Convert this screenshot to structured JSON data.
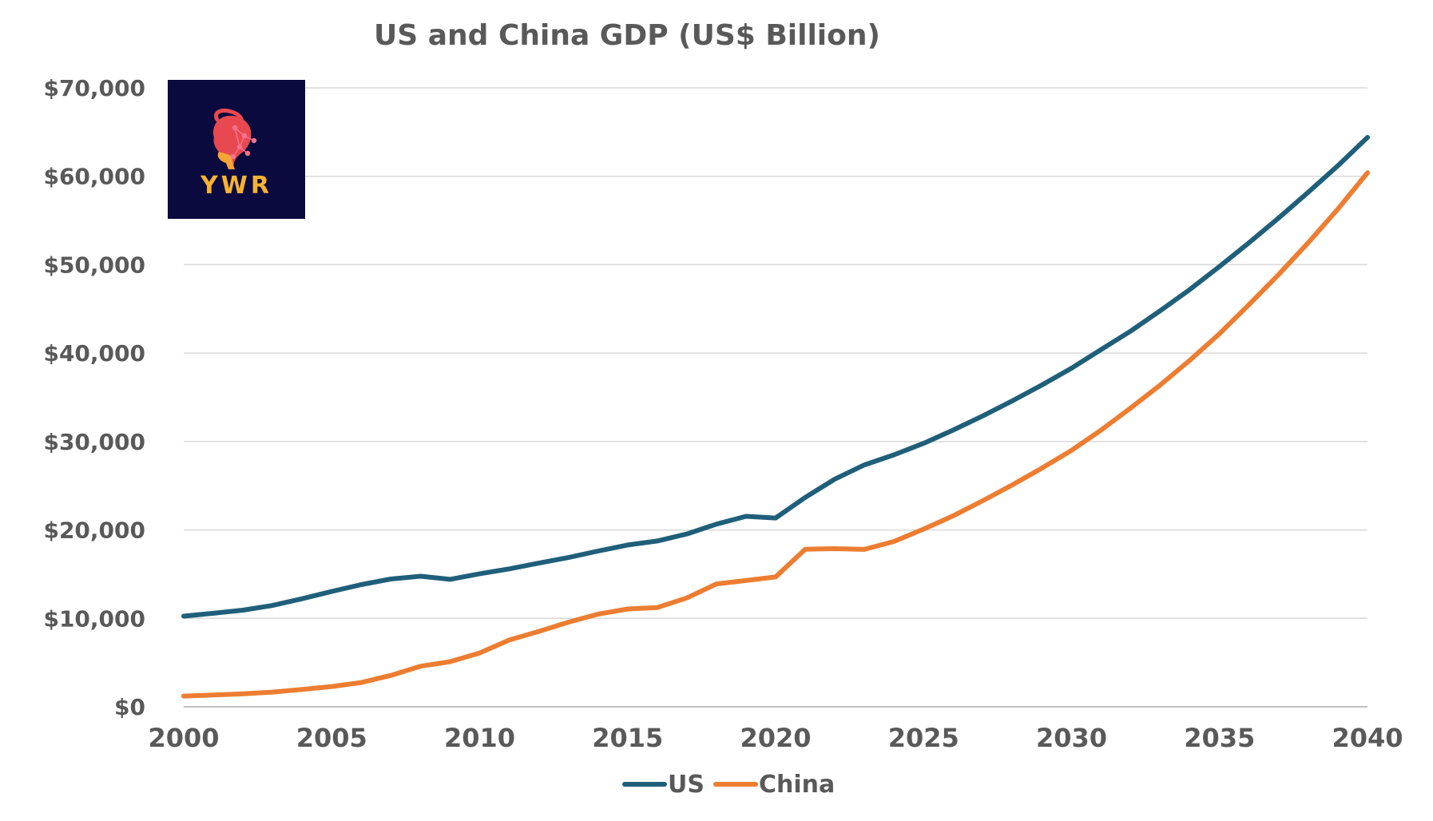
{
  "chart_data": {
    "type": "line",
    "title": "US and China GDP (US$ Billion)",
    "xlabel": "",
    "ylabel": "",
    "x": [
      2000,
      2001,
      2002,
      2003,
      2004,
      2005,
      2006,
      2007,
      2008,
      2009,
      2010,
      2011,
      2012,
      2013,
      2014,
      2015,
      2016,
      2017,
      2018,
      2019,
      2020,
      2021,
      2022,
      2023,
      2024,
      2025,
      2026,
      2027,
      2028,
      2029,
      2030,
      2031,
      2032,
      2033,
      2034,
      2035,
      2036,
      2037,
      2038,
      2039,
      2040
    ],
    "xlim": [
      2000,
      2040
    ],
    "ylim": [
      0,
      70000
    ],
    "x_ticks": [
      "2000",
      "2005",
      "2010",
      "2015",
      "2020",
      "2025",
      "2030",
      "2035",
      "2040"
    ],
    "y_ticks": [
      "$0",
      "$10,000",
      "$20,000",
      "$30,000",
      "$40,000",
      "$50,000",
      "$60,000",
      "$70,000"
    ],
    "grid": true,
    "legend_position": "bottom",
    "series": [
      {
        "name": "US",
        "color": "#1f5f7a",
        "values": [
          10250,
          10580,
          10930,
          11460,
          12220,
          13040,
          13820,
          14450,
          14770,
          14420,
          15050,
          15600,
          16250,
          16880,
          17610,
          18300,
          18750,
          19550,
          20660,
          21540,
          21350,
          23680,
          25750,
          27360,
          28500,
          29800,
          31300,
          32900,
          34600,
          36400,
          38300,
          40400,
          42500,
          44800,
          47200,
          49800,
          52500,
          55300,
          58200,
          61200,
          64400
        ]
      },
      {
        "name": "China",
        "color": "#ed7d31",
        "values": [
          1210,
          1340,
          1470,
          1660,
          1960,
          2290,
          2750,
          3550,
          4590,
          5100,
          6090,
          7550,
          8530,
          9570,
          10480,
          11060,
          11230,
          12310,
          13890,
          14280,
          14690,
          17820,
          17880,
          17800,
          18700,
          20100,
          21600,
          23300,
          25100,
          27000,
          29000,
          31300,
          33800,
          36400,
          39200,
          42200,
          45500,
          48900,
          52500,
          56300,
          60400
        ]
      }
    ]
  },
  "logo": {
    "text": "YWR",
    "background": "#0b0a3f",
    "text_color": "#f7b233",
    "icon": "head-network-icon"
  }
}
